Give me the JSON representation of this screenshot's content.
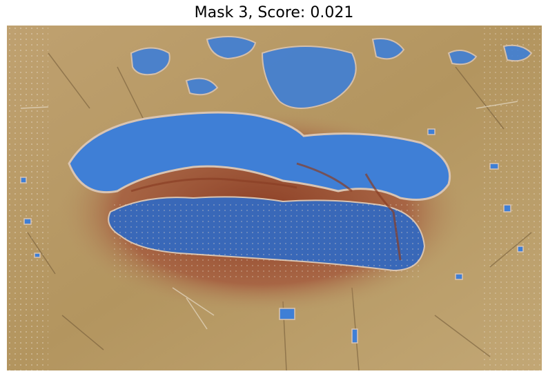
{
  "figure": {
    "title": "Mask 3, Score: 0.021"
  },
  "image": {
    "subject": "textured-surface-with-mask-overlay",
    "colors": {
      "background": "#b89a68",
      "mask": "#3f7fd6",
      "mask_edge": "#d9c4b2",
      "halo": "#9a4a2e"
    }
  }
}
